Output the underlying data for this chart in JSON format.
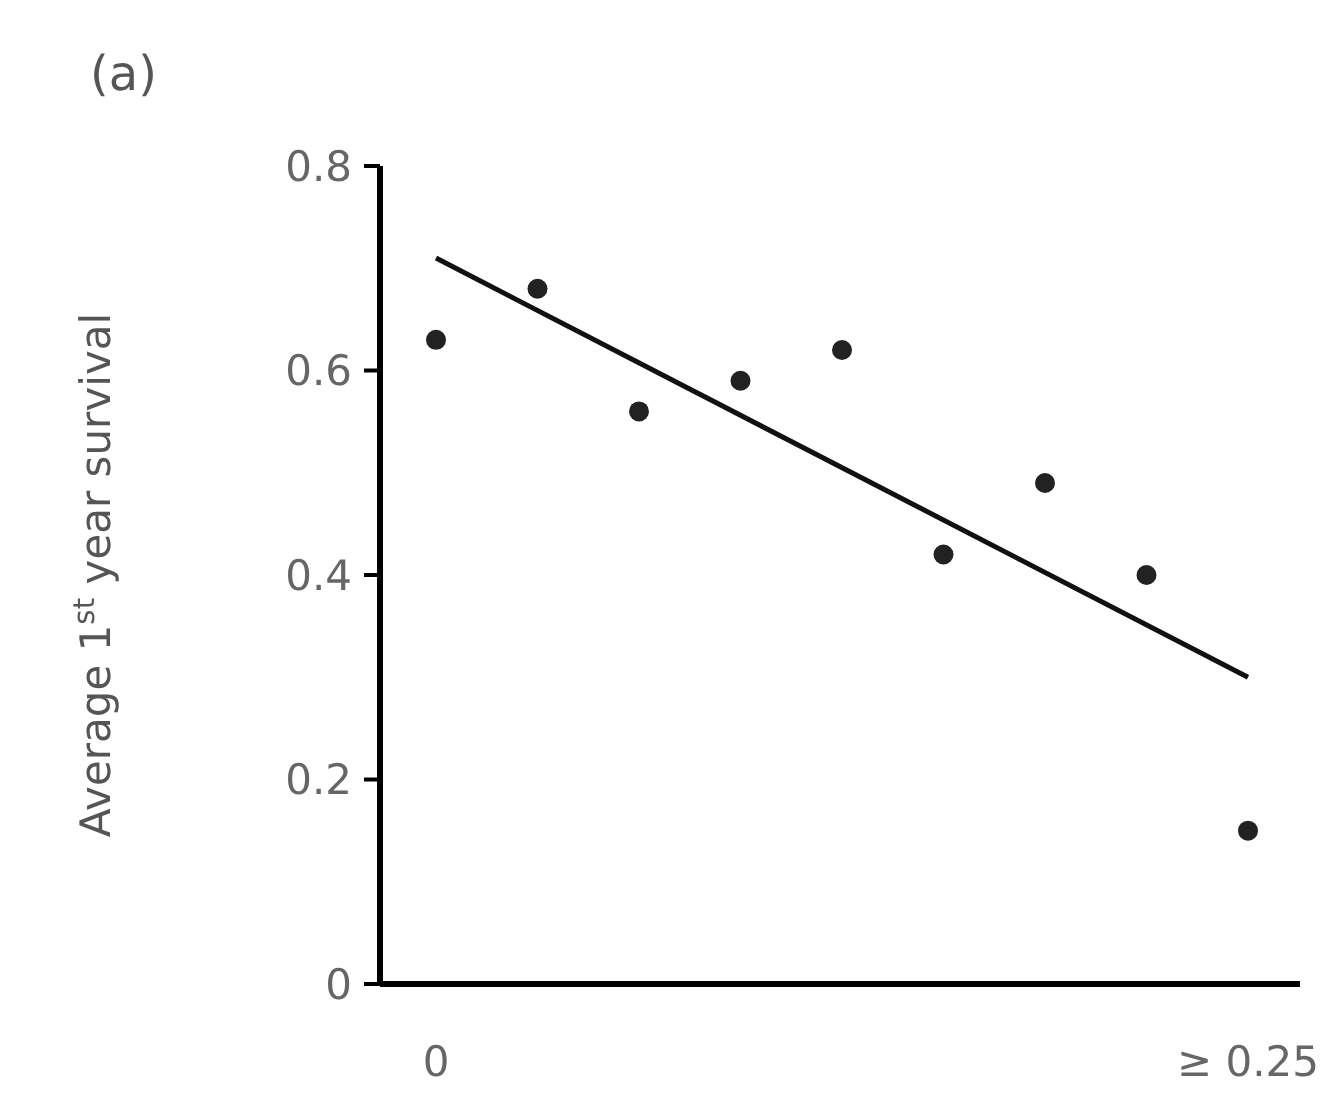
{
  "chart_data": {
    "type": "scatter",
    "title": "(a)",
    "ylabel": "Average 1$^{st}$ year survival",
    "categories": [
      "0",
      null,
      null,
      null,
      null,
      null,
      null,
      null,
      "≥ 0.25"
    ],
    "series": [
      {
        "marker": "circle",
        "color": "#222222",
        "values": [
          0.63,
          0.68,
          0.56,
          0.59,
          0.62,
          0.42,
          0.49,
          0.4,
          0.15
        ]
      },
      {
        "type": "line",
        "marker": "none",
        "color": "#111111",
        "values": [
          0.71,
          null,
          null,
          null,
          null,
          null,
          null,
          null,
          0.3
        ]
      }
    ],
    "ylim": [
      0,
      0.8
    ],
    "yticks": [
      0,
      0.2,
      0.4,
      0.6,
      0.8
    ],
    "grid": false
  }
}
